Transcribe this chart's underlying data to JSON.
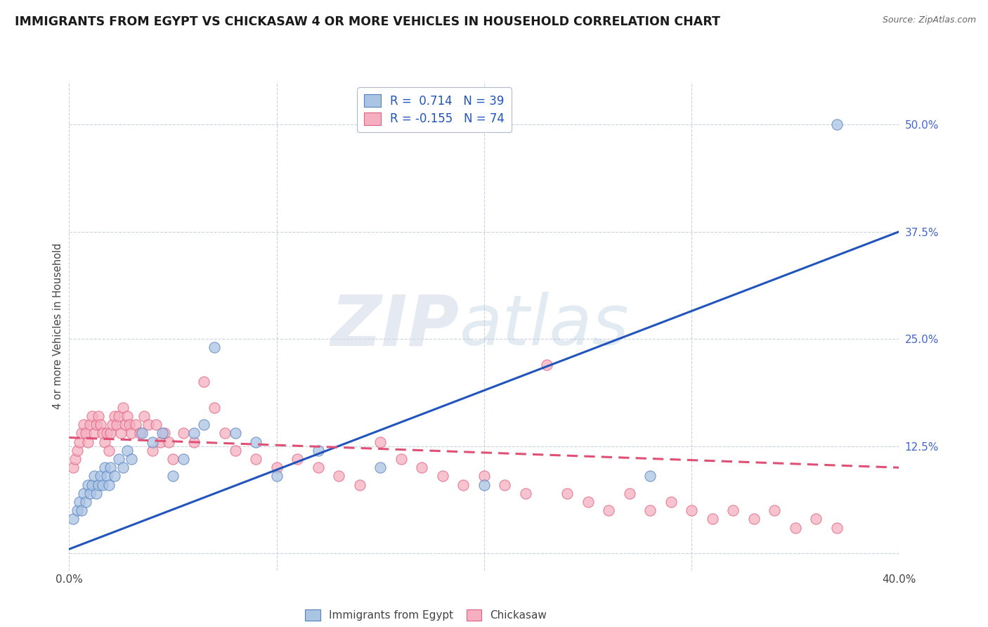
{
  "title": "IMMIGRANTS FROM EGYPT VS CHICKASAW 4 OR MORE VEHICLES IN HOUSEHOLD CORRELATION CHART",
  "source": "Source: ZipAtlas.com",
  "ylabel": "4 or more Vehicles in Household",
  "xlim": [
    0.0,
    0.4
  ],
  "ylim": [
    -0.02,
    0.55
  ],
  "xtick_values": [
    0.0,
    0.1,
    0.2,
    0.3,
    0.4
  ],
  "xtick_labels": [
    "0.0%",
    "",
    "",
    "",
    "40.0%"
  ],
  "ytick_values": [
    0.0,
    0.125,
    0.25,
    0.375,
    0.5
  ],
  "ytick_labels": [
    "",
    "12.5%",
    "25.0%",
    "37.5%",
    "50.0%"
  ],
  "blue_R": 0.714,
  "blue_N": 39,
  "pink_R": -0.155,
  "pink_N": 74,
  "legend_label_blue": "Immigrants from Egypt",
  "legend_label_pink": "Chickasaw",
  "blue_fill": "#aac4e4",
  "pink_fill": "#f5afc0",
  "blue_edge": "#5580c0",
  "pink_edge": "#e06080",
  "blue_line": "#2255bb",
  "pink_line": "#e05075",
  "watermark_ZIP": "ZIP",
  "watermark_atlas": "atlas",
  "blue_line_x0": 0.0,
  "blue_line_y0": 0.005,
  "blue_line_x1": 0.4,
  "blue_line_y1": 0.375,
  "pink_line_x0": 0.0,
  "pink_line_y0": 0.135,
  "pink_line_x1": 0.4,
  "pink_line_y1": 0.1,
  "blue_scatter_x": [
    0.002,
    0.004,
    0.005,
    0.006,
    0.007,
    0.008,
    0.009,
    0.01,
    0.011,
    0.012,
    0.013,
    0.014,
    0.015,
    0.016,
    0.017,
    0.018,
    0.019,
    0.02,
    0.022,
    0.024,
    0.026,
    0.028,
    0.03,
    0.035,
    0.04,
    0.045,
    0.05,
    0.055,
    0.06,
    0.065,
    0.07,
    0.08,
    0.09,
    0.1,
    0.12,
    0.15,
    0.2,
    0.28,
    0.37
  ],
  "blue_scatter_y": [
    0.04,
    0.05,
    0.06,
    0.05,
    0.07,
    0.06,
    0.08,
    0.07,
    0.08,
    0.09,
    0.07,
    0.08,
    0.09,
    0.08,
    0.1,
    0.09,
    0.08,
    0.1,
    0.09,
    0.11,
    0.1,
    0.12,
    0.11,
    0.14,
    0.13,
    0.14,
    0.09,
    0.11,
    0.14,
    0.15,
    0.24,
    0.14,
    0.13,
    0.09,
    0.12,
    0.1,
    0.08,
    0.09,
    0.5
  ],
  "pink_scatter_x": [
    0.002,
    0.003,
    0.004,
    0.005,
    0.006,
    0.007,
    0.008,
    0.009,
    0.01,
    0.011,
    0.012,
    0.013,
    0.014,
    0.015,
    0.016,
    0.017,
    0.018,
    0.019,
    0.02,
    0.021,
    0.022,
    0.023,
    0.024,
    0.025,
    0.026,
    0.027,
    0.028,
    0.029,
    0.03,
    0.032,
    0.034,
    0.036,
    0.038,
    0.04,
    0.042,
    0.044,
    0.046,
    0.048,
    0.05,
    0.055,
    0.06,
    0.065,
    0.07,
    0.075,
    0.08,
    0.09,
    0.1,
    0.11,
    0.12,
    0.13,
    0.14,
    0.15,
    0.16,
    0.17,
    0.18,
    0.19,
    0.2,
    0.21,
    0.22,
    0.23,
    0.24,
    0.25,
    0.26,
    0.27,
    0.28,
    0.29,
    0.3,
    0.31,
    0.32,
    0.33,
    0.34,
    0.35,
    0.36,
    0.37
  ],
  "pink_scatter_y": [
    0.1,
    0.11,
    0.12,
    0.13,
    0.14,
    0.15,
    0.14,
    0.13,
    0.15,
    0.16,
    0.14,
    0.15,
    0.16,
    0.15,
    0.14,
    0.13,
    0.14,
    0.12,
    0.14,
    0.15,
    0.16,
    0.15,
    0.16,
    0.14,
    0.17,
    0.15,
    0.16,
    0.15,
    0.14,
    0.15,
    0.14,
    0.16,
    0.15,
    0.12,
    0.15,
    0.13,
    0.14,
    0.13,
    0.11,
    0.14,
    0.13,
    0.2,
    0.17,
    0.14,
    0.12,
    0.11,
    0.1,
    0.11,
    0.1,
    0.09,
    0.08,
    0.13,
    0.11,
    0.1,
    0.09,
    0.08,
    0.09,
    0.08,
    0.07,
    0.22,
    0.07,
    0.06,
    0.05,
    0.07,
    0.05,
    0.06,
    0.05,
    0.04,
    0.05,
    0.04,
    0.05,
    0.03,
    0.04,
    0.03
  ]
}
